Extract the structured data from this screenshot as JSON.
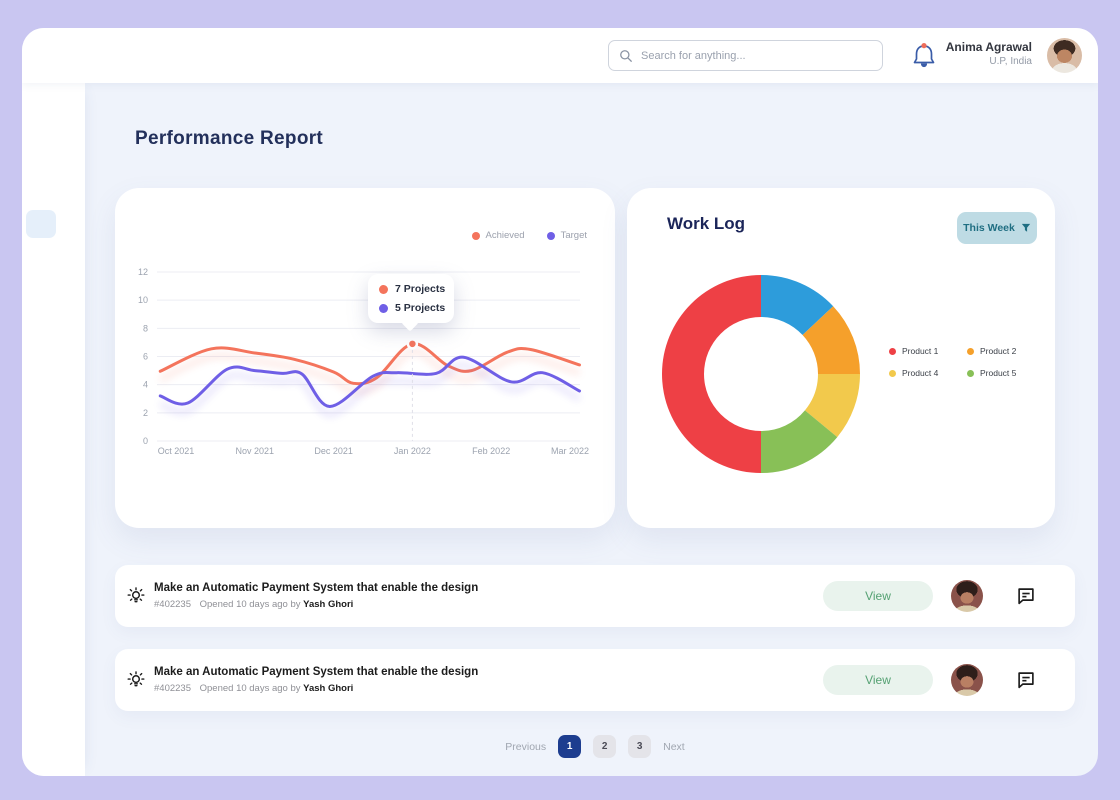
{
  "topbar": {
    "search_placeholder": "Search for anything...",
    "user_name": "Anima Agrawal",
    "user_location": "U.P, India"
  },
  "page": {
    "title": "Performance Report"
  },
  "performance": {
    "legend": [
      {
        "label": "Achieved",
        "color": "#F4745C"
      },
      {
        "label": "Target",
        "color": "#6F5FE6"
      }
    ],
    "tooltip": [
      {
        "label": "7 Projects",
        "color": "#F4745C"
      },
      {
        "label": "5 Projects",
        "color": "#6F5FE6"
      }
    ]
  },
  "work_log": {
    "title": "Work Log",
    "filter_label": "This Week",
    "legend": [
      {
        "label": "Product 1",
        "color": "#EE4045"
      },
      {
        "label": "Product 2",
        "color": "#F5A02B"
      },
      {
        "label": "Product 4",
        "color": "#F2C94C"
      },
      {
        "label": "Product 5",
        "color": "#88C057"
      }
    ]
  },
  "tasks": {
    "items": [
      {
        "title": "Make an Automatic Payment System that enable the design",
        "id": "#402235",
        "opened": "Opened 10 days ago by",
        "author": "Yash Ghori",
        "view_label": "View"
      },
      {
        "title": "Make an Automatic Payment System that enable the design",
        "id": "#402235",
        "opened": "Opened 10 days ago by",
        "author": "Yash Ghori",
        "view_label": "View"
      }
    ]
  },
  "pagination": {
    "previous_label": "Previous",
    "pages": [
      "1",
      "2",
      "3"
    ],
    "active_page": "1",
    "next_label": "Next"
  },
  "colors": {
    "canvas": "#C9C6F1",
    "content_bg": "#EFF3FB",
    "navy_text": "#1B2559",
    "achieved_line": "#F4745C",
    "target_line": "#6F5FE6",
    "pagination_active": "#1D3D8F",
    "view_button_bg": "#E9F3ED",
    "view_button_text": "#55A173",
    "this_week_bg": "#BEDBE4",
    "this_week_text": "#1F6E82",
    "notification_dot": "#EE6D5A"
  },
  "chart_data": [
    {
      "type": "line",
      "title": "Performance Report",
      "x_tick_labels": [
        "Oct 2021",
        "Nov 2021",
        "Dec 2021",
        "Jan 2022",
        "Feb 2022",
        "Mar 2022"
      ],
      "y_ticks": [
        0,
        2,
        4,
        6,
        8,
        10,
        12
      ],
      "ylim": [
        0,
        12
      ],
      "grid": true,
      "legend_position": "top-right",
      "series": [
        {
          "name": "Achieved",
          "color": "#F4745C",
          "points": [
            [
              -0.2,
              4.95
            ],
            [
              0.45,
              6.55
            ],
            [
              1,
              6.25
            ],
            [
              1.5,
              5.8
            ],
            [
              2,
              4.9
            ],
            [
              2.25,
              4.1
            ],
            [
              2.55,
              4.5
            ],
            [
              3,
              6.9
            ],
            [
              3.45,
              5.35
            ],
            [
              3.75,
              5.0
            ],
            [
              4.2,
              6.3
            ],
            [
              4.5,
              6.5
            ],
            [
              5.12,
              5.4
            ]
          ]
        },
        {
          "name": "Target",
          "color": "#6F5FE6",
          "points": [
            [
              -0.2,
              3.2
            ],
            [
              0.15,
              2.7
            ],
            [
              0.65,
              5.1
            ],
            [
              1,
              5.0
            ],
            [
              1.35,
              4.8
            ],
            [
              1.6,
              4.75
            ],
            [
              1.95,
              2.45
            ],
            [
              2.5,
              4.6
            ],
            [
              2.8,
              4.85
            ],
            [
              3.3,
              4.8
            ],
            [
              3.65,
              5.95
            ],
            [
              4.25,
              4.2
            ],
            [
              4.65,
              4.85
            ],
            [
              5.12,
              3.55
            ]
          ]
        }
      ],
      "annotation": {
        "x": 3,
        "series_values": {
          "Achieved": 7,
          "Target": 5
        },
        "tooltip": [
          "7 Projects",
          "5 Projects"
        ]
      }
    },
    {
      "type": "donut",
      "title": "Work Log",
      "start_angle_deg": -90,
      "direction": "clockwise",
      "slices": [
        {
          "label": "",
          "color": "#2D9CDB",
          "value": 13
        },
        {
          "label": "Product 2",
          "color": "#F5A02B",
          "value": 12
        },
        {
          "label": "Product 4",
          "color": "#F2C94C",
          "value": 11
        },
        {
          "label": "Product 5",
          "color": "#88C057",
          "value": 14
        },
        {
          "label": "Product 1",
          "color": "#EE4045",
          "value": 50
        }
      ]
    }
  ]
}
